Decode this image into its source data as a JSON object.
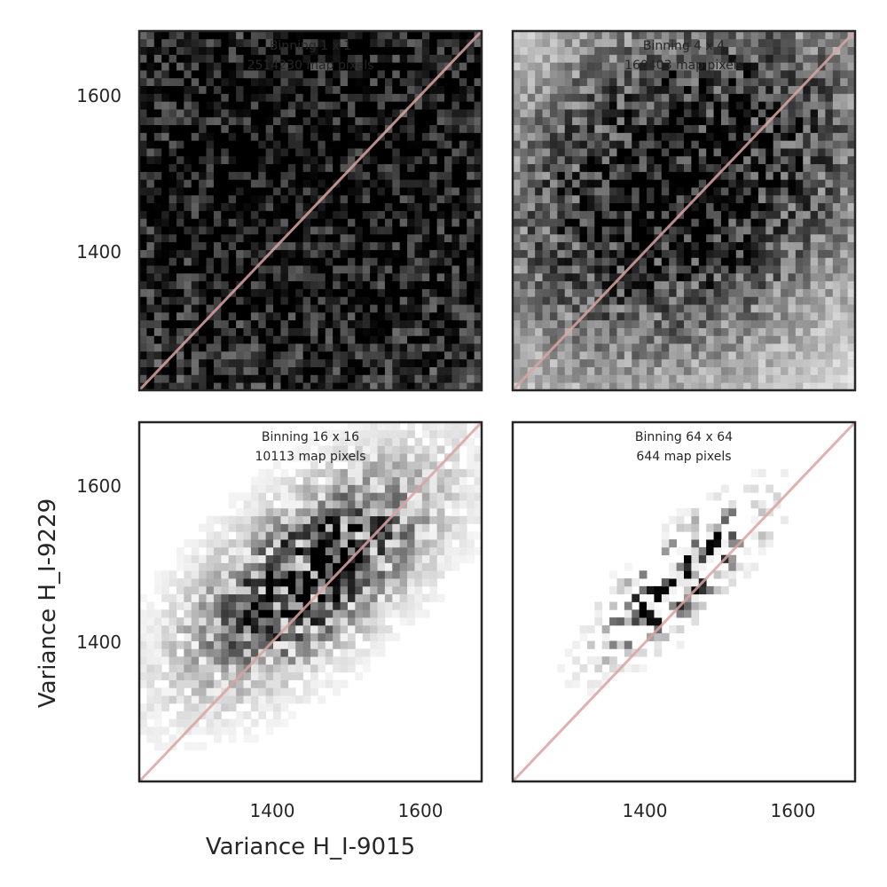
{
  "chart_data": {
    "type": "heatmap",
    "xlabel": "Variance H_I-9015",
    "ylabel": "Variance H_I-9229",
    "xlim": [
      1220,
      1680
    ],
    "ylim": [
      1220,
      1680
    ],
    "xticks": [
      "1400",
      "1600"
    ],
    "yticks": [
      "1400",
      "1600"
    ],
    "xtick_values": [
      1400,
      1600
    ],
    "ytick_values": [
      1400,
      1600
    ],
    "grid": false,
    "reference_line": "y = x",
    "colormap": "greys",
    "bins_per_axis": 46,
    "panels": [
      {
        "line1": "Binning 1 x 1",
        "line2": "2514230 map pixels",
        "binning": 1,
        "map_pixels": 2514230,
        "center_x": 1450,
        "center_y": 1500,
        "spread_x": 320,
        "spread_y": 300,
        "correlation": 0.1,
        "noise": 0.55,
        "min_density": 0.28,
        "gamma": 0.55
      },
      {
        "line1": "Binning 4 x 4",
        "line2": "160403 map pixels",
        "binning": 4,
        "map_pixels": 160403,
        "center_x": 1450,
        "center_y": 1490,
        "spread_x": 170,
        "spread_y": 150,
        "correlation": 0.25,
        "noise": 0.6,
        "min_density": 0.03,
        "gamma": 0.7
      },
      {
        "line1": "Binning 16 x 16",
        "line2": "10113 map pixels",
        "binning": 16,
        "map_pixels": 10113,
        "center_x": 1450,
        "center_y": 1485,
        "spread_x": 95,
        "spread_y": 80,
        "correlation": 0.65,
        "noise": 0.6,
        "min_density": 0.0,
        "gamma": 0.85
      },
      {
        "line1": "Binning 64 x 64",
        "line2": "644 map pixels",
        "binning": 64,
        "map_pixels": 644,
        "center_x": 1445,
        "center_y": 1480,
        "spread_x": 60,
        "spread_y": 55,
        "correlation": 0.8,
        "noise": 0.9,
        "min_density": 0.0,
        "gamma": 1.0
      }
    ],
    "colors": {
      "diagonal": "#d9a3a3",
      "frame": "#262626",
      "text": "#262626"
    }
  }
}
